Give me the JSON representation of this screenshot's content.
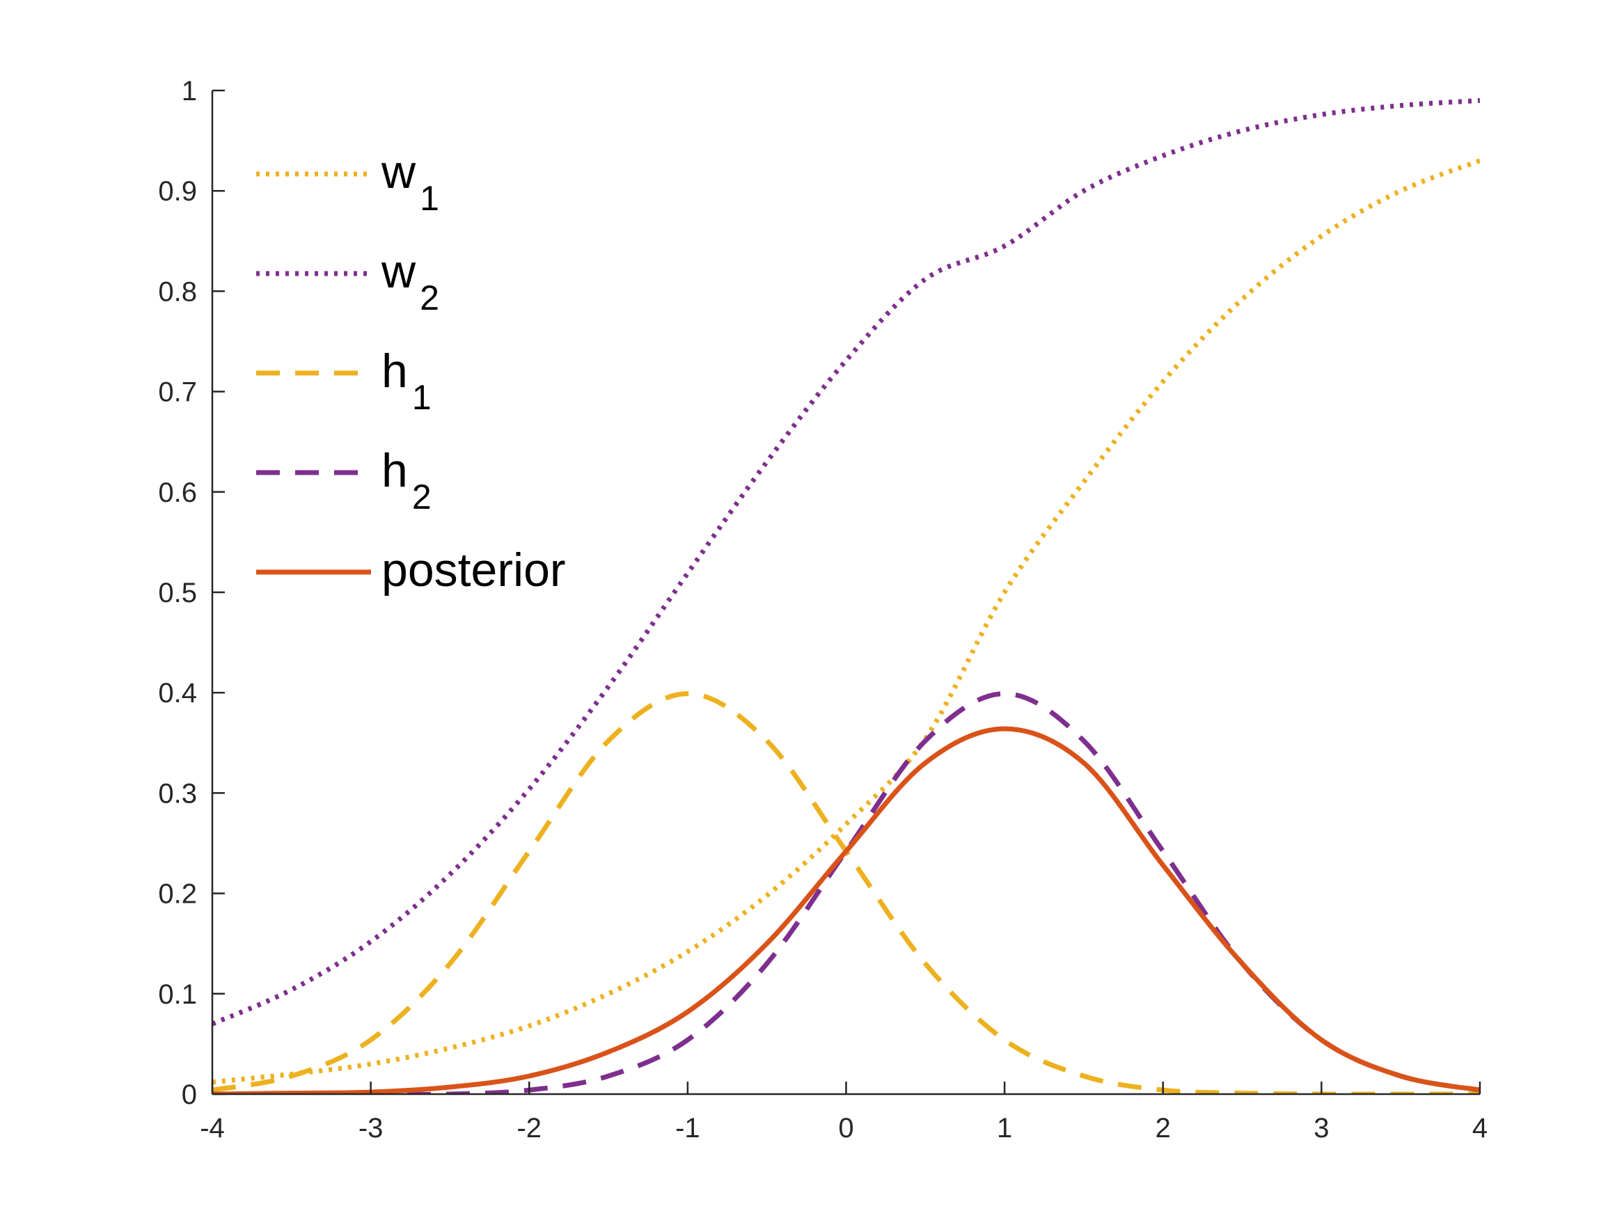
{
  "chart_data": {
    "type": "line",
    "title": "",
    "xlabel": "",
    "ylabel": "",
    "xlim": [
      -4,
      4
    ],
    "ylim": [
      0,
      1
    ],
    "xticks": [
      -4,
      -3,
      -2,
      -1,
      0,
      1,
      2,
      3,
      4
    ],
    "xtick_labels": [
      "-4",
      "-3",
      "-2",
      "-1",
      "0",
      "1",
      "2",
      "3",
      "4"
    ],
    "yticks": [
      0,
      0.1,
      0.2,
      0.3,
      0.4,
      0.5,
      0.6,
      0.7,
      0.8,
      0.9,
      1
    ],
    "ytick_labels": [
      "0",
      "0.1",
      "0.2",
      "0.3",
      "0.4",
      "0.5",
      "0.6",
      "0.7",
      "0.8",
      "0.9",
      "1"
    ],
    "grid": false,
    "legend_position": "top-left",
    "x": [
      -4,
      -3.5,
      -3,
      -2.5,
      -2,
      -1.5,
      -1,
      -0.5,
      0,
      0.5,
      1,
      1.5,
      2,
      2.5,
      3,
      3.5,
      4
    ],
    "series": [
      {
        "name": "w",
        "sub": "1",
        "color": "#EDB120",
        "dash": "dotted",
        "values": [
          0.012,
          0.02,
          0.03,
          0.046,
          0.068,
          0.1,
          0.142,
          0.198,
          0.269,
          0.354,
          0.5,
          0.61,
          0.71,
          0.792,
          0.855,
          0.9,
          0.93
        ]
      },
      {
        "name": "w",
        "sub": "2",
        "color": "#7E2F8E",
        "dash": "dotted",
        "values": [
          0.07,
          0.104,
          0.152,
          0.219,
          0.304,
          0.406,
          0.519,
          0.63,
          0.731,
          0.812,
          0.845,
          0.9,
          0.935,
          0.96,
          0.976,
          0.985,
          0.99
        ]
      },
      {
        "name": "h",
        "sub": "1",
        "color": "#EDB120",
        "dash": "dashed",
        "values": [
          0.004,
          0.018,
          0.054,
          0.13,
          0.242,
          0.352,
          0.399,
          0.352,
          0.242,
          0.13,
          0.054,
          0.018,
          0.004,
          0.001,
          0.0,
          0.0,
          0.0
        ]
      },
      {
        "name": "h",
        "sub": "2",
        "color": "#7E2F8E",
        "dash": "dashed",
        "values": [
          0.0,
          0.0,
          0.0,
          0.0,
          0.004,
          0.018,
          0.054,
          0.13,
          0.242,
          0.352,
          0.399,
          0.352,
          0.242,
          0.13,
          0.054,
          0.018,
          0.004
        ]
      },
      {
        "name": "posterior",
        "sub": "",
        "color": "#D95319",
        "dash": "solid",
        "values": [
          0.0,
          0.001,
          0.002,
          0.007,
          0.018,
          0.042,
          0.082,
          0.15,
          0.242,
          0.33,
          0.364,
          0.33,
          0.228,
          0.13,
          0.054,
          0.018,
          0.004
        ]
      }
    ]
  }
}
